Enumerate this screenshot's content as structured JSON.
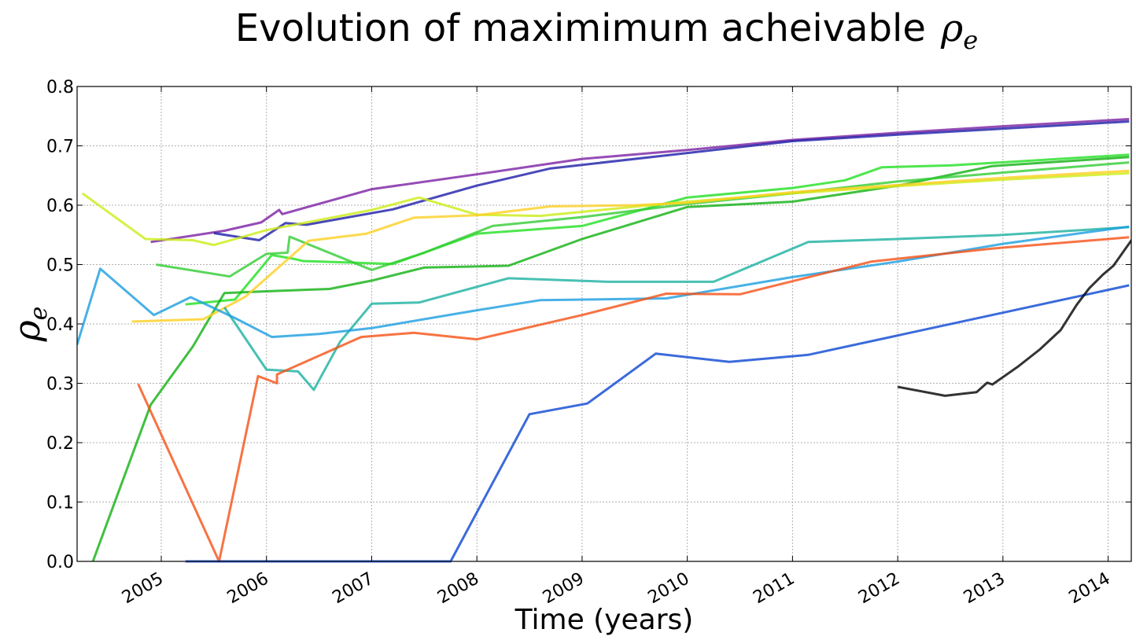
{
  "chart_data": {
    "type": "line",
    "title": "Evolution of maximimum acheivable",
    "title_symbol": "ρ",
    "title_symbol_sub": "e",
    "xlabel": "Time (years)",
    "ylabel_symbol": "ρ",
    "ylabel_symbol_sub": "e",
    "xlim": [
      2004.2,
      2014.22
    ],
    "ylim": [
      0.0,
      0.8
    ],
    "xticks": [
      {
        "value": 2005.0,
        "label": "2005"
      },
      {
        "value": 2006.0,
        "label": "2006"
      },
      {
        "value": 2007.0,
        "label": "2007"
      },
      {
        "value": 2008.0,
        "label": "2008"
      },
      {
        "value": 2009.0,
        "label": "2009"
      },
      {
        "value": 2010.0,
        "label": "2010"
      },
      {
        "value": 2011.0,
        "label": "2011"
      },
      {
        "value": 2012.0,
        "label": "2012"
      },
      {
        "value": 2013.0,
        "label": "2013"
      },
      {
        "value": 2014.0,
        "label": "2014"
      }
    ],
    "yticks": [
      {
        "value": 0.0,
        "label": "0.0"
      },
      {
        "value": 0.1,
        "label": "0.1"
      },
      {
        "value": 0.2,
        "label": "0.2"
      },
      {
        "value": 0.3,
        "label": "0.3"
      },
      {
        "value": 0.4,
        "label": "0.4"
      },
      {
        "value": 0.5,
        "label": "0.5"
      },
      {
        "value": 0.6,
        "label": "0.6"
      },
      {
        "value": 0.7,
        "label": "0.7"
      },
      {
        "value": 0.8,
        "label": "0.8"
      }
    ],
    "grid": true,
    "legend": "none",
    "series": [
      {
        "color": "#7b1fa2",
        "points": [
          [
            2004.9,
            0.538
          ],
          [
            2005.6,
            0.557
          ],
          [
            2005.95,
            0.571
          ],
          [
            2006.12,
            0.592
          ],
          [
            2006.15,
            0.585
          ],
          [
            2007.0,
            0.627
          ],
          [
            2008.0,
            0.652
          ],
          [
            2009.0,
            0.678
          ],
          [
            2010.0,
            0.693
          ],
          [
            2011.0,
            0.71
          ],
          [
            2012.0,
            0.722
          ],
          [
            2013.0,
            0.733
          ],
          [
            2014.2,
            0.745
          ]
        ]
      },
      {
        "color": "#1c1ca8",
        "points": [
          [
            2005.5,
            0.553
          ],
          [
            2005.93,
            0.541
          ],
          [
            2006.18,
            0.57
          ],
          [
            2006.38,
            0.567
          ],
          [
            2007.2,
            0.593
          ],
          [
            2008.0,
            0.633
          ],
          [
            2008.7,
            0.662
          ],
          [
            2010.0,
            0.688
          ],
          [
            2011.0,
            0.708
          ],
          [
            2012.0,
            0.719
          ],
          [
            2013.0,
            0.729
          ],
          [
            2014.2,
            0.741
          ]
        ]
      },
      {
        "color": "#22e022",
        "points": [
          [
            2005.23,
            0.433
          ],
          [
            2005.7,
            0.441
          ],
          [
            2006.05,
            0.516
          ],
          [
            2006.25,
            0.51
          ],
          [
            2006.35,
            0.506
          ],
          [
            2007.2,
            0.501
          ],
          [
            2008.0,
            0.552
          ],
          [
            2009.0,
            0.565
          ],
          [
            2010.0,
            0.613
          ],
          [
            2011.0,
            0.629
          ],
          [
            2011.5,
            0.642
          ],
          [
            2011.85,
            0.664
          ],
          [
            2012.5,
            0.667
          ],
          [
            2014.2,
            0.685
          ]
        ]
      },
      {
        "color": "#10b010",
        "points": [
          [
            2004.35,
            0.0
          ],
          [
            2004.9,
            0.264
          ],
          [
            2005.3,
            0.362
          ],
          [
            2005.6,
            0.452
          ],
          [
            2006.0,
            0.455
          ],
          [
            2006.6,
            0.459
          ],
          [
            2007.0,
            0.473
          ],
          [
            2007.5,
            0.495
          ],
          [
            2008.3,
            0.498
          ],
          [
            2009.0,
            0.543
          ],
          [
            2010.0,
            0.597
          ],
          [
            2011.0,
            0.606
          ],
          [
            2012.0,
            0.633
          ],
          [
            2012.9,
            0.666
          ],
          [
            2014.2,
            0.681
          ]
        ]
      },
      {
        "color": "#33cc33",
        "points": [
          [
            2004.95,
            0.5
          ],
          [
            2005.65,
            0.48
          ],
          [
            2006.0,
            0.518
          ],
          [
            2006.2,
            0.52
          ],
          [
            2006.22,
            0.547
          ],
          [
            2007.0,
            0.491
          ],
          [
            2007.5,
            0.52
          ],
          [
            2008.15,
            0.565
          ],
          [
            2009.0,
            0.58
          ],
          [
            2010.0,
            0.602
          ],
          [
            2011.0,
            0.62
          ],
          [
            2012.0,
            0.64
          ],
          [
            2013.0,
            0.655
          ],
          [
            2014.2,
            0.672
          ]
        ]
      },
      {
        "color": "#ccec14",
        "points": [
          [
            2004.25,
            0.62
          ],
          [
            2004.85,
            0.543
          ],
          [
            2005.3,
            0.541
          ],
          [
            2005.5,
            0.533
          ],
          [
            2006.0,
            0.558
          ],
          [
            2007.0,
            0.592
          ],
          [
            2007.45,
            0.613
          ],
          [
            2008.0,
            0.584
          ],
          [
            2008.6,
            0.582
          ],
          [
            2010.0,
            0.606
          ],
          [
            2011.0,
            0.62
          ],
          [
            2012.0,
            0.632
          ],
          [
            2013.0,
            0.643
          ],
          [
            2014.2,
            0.654
          ]
        ]
      },
      {
        "color": "#fcd020",
        "points": [
          [
            2004.72,
            0.404
          ],
          [
            2005.4,
            0.408
          ],
          [
            2005.8,
            0.446
          ],
          [
            2006.4,
            0.54
          ],
          [
            2006.95,
            0.552
          ],
          [
            2007.4,
            0.579
          ],
          [
            2008.0,
            0.583
          ],
          [
            2008.7,
            0.598
          ],
          [
            2009.5,
            0.6
          ],
          [
            2010.0,
            0.604
          ],
          [
            2011.0,
            0.622
          ],
          [
            2012.0,
            0.634
          ],
          [
            2013.0,
            0.646
          ],
          [
            2014.2,
            0.658
          ]
        ]
      },
      {
        "color": "#1ab0a0",
        "points": [
          [
            2005.6,
            0.428
          ],
          [
            2006.0,
            0.323
          ],
          [
            2006.2,
            0.321
          ],
          [
            2006.3,
            0.32
          ],
          [
            2006.45,
            0.289
          ],
          [
            2006.7,
            0.37
          ],
          [
            2007.0,
            0.434
          ],
          [
            2007.45,
            0.436
          ],
          [
            2008.3,
            0.477
          ],
          [
            2009.25,
            0.471
          ],
          [
            2010.25,
            0.471
          ],
          [
            2011.15,
            0.538
          ],
          [
            2012.0,
            0.543
          ],
          [
            2013.0,
            0.55
          ],
          [
            2014.2,
            0.563
          ]
        ]
      },
      {
        "color": "#1a9ee0",
        "points": [
          [
            2004.2,
            0.365
          ],
          [
            2004.42,
            0.493
          ],
          [
            2004.93,
            0.415
          ],
          [
            2005.28,
            0.445
          ],
          [
            2005.7,
            0.41
          ],
          [
            2006.05,
            0.378
          ],
          [
            2006.5,
            0.383
          ],
          [
            2007.0,
            0.393
          ],
          [
            2008.0,
            0.423
          ],
          [
            2008.6,
            0.44
          ],
          [
            2009.8,
            0.443
          ],
          [
            2011.0,
            0.479
          ],
          [
            2012.0,
            0.505
          ],
          [
            2013.0,
            0.535
          ],
          [
            2014.2,
            0.564
          ]
        ]
      },
      {
        "color": "#f55014",
        "points": [
          [
            2004.78,
            0.299
          ],
          [
            2005.55,
            0.0
          ],
          [
            2005.92,
            0.312
          ],
          [
            2006.1,
            0.3
          ],
          [
            2006.1,
            0.315
          ],
          [
            2006.9,
            0.378
          ],
          [
            2007.4,
            0.385
          ],
          [
            2008.0,
            0.374
          ],
          [
            2009.0,
            0.415
          ],
          [
            2009.8,
            0.451
          ],
          [
            2010.5,
            0.45
          ],
          [
            2011.75,
            0.505
          ],
          [
            2012.9,
            0.527
          ],
          [
            2014.2,
            0.546
          ]
        ]
      },
      {
        "color": "#0a46d2",
        "points": [
          [
            2005.23,
            0.0
          ],
          [
            2007.75,
            0.0
          ],
          [
            2008.5,
            0.248
          ],
          [
            2009.05,
            0.266
          ],
          [
            2009.7,
            0.35
          ],
          [
            2010.4,
            0.336
          ],
          [
            2011.15,
            0.348
          ],
          [
            2014.2,
            0.465
          ]
        ]
      },
      {
        "color": "#000000",
        "points": [
          [
            2012.0,
            0.294
          ],
          [
            2012.45,
            0.279
          ],
          [
            2012.75,
            0.285
          ],
          [
            2012.85,
            0.301
          ],
          [
            2012.9,
            0.298
          ],
          [
            2013.15,
            0.329
          ],
          [
            2013.35,
            0.357
          ],
          [
            2013.55,
            0.39
          ],
          [
            2013.7,
            0.432
          ],
          [
            2013.82,
            0.46
          ],
          [
            2013.95,
            0.483
          ],
          [
            2014.05,
            0.498
          ],
          [
            2014.15,
            0.523
          ],
          [
            2014.25,
            0.548
          ]
        ]
      }
    ]
  }
}
